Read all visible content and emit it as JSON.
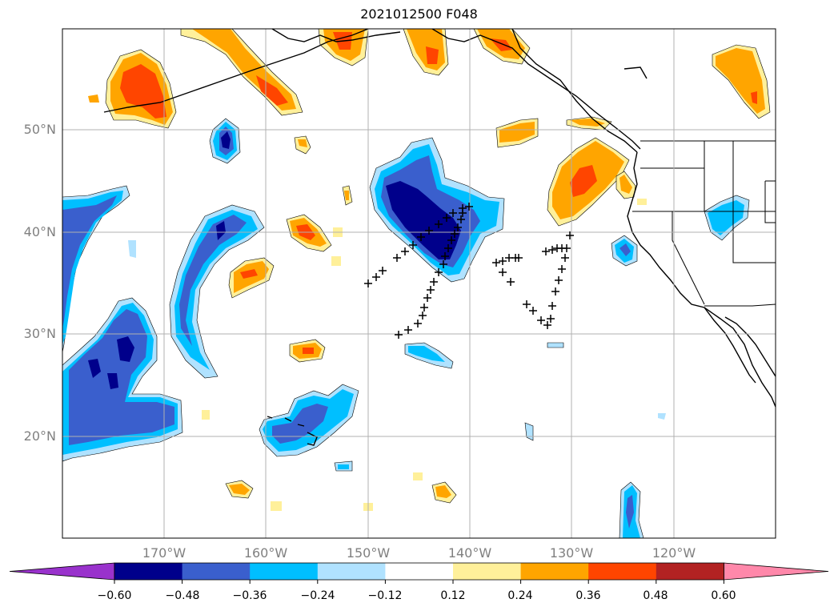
{
  "title": "2021012500 F048",
  "map": {
    "lat_labels": [
      "50°N",
      "40°N",
      "30°N",
      "20°N"
    ],
    "lon_labels": [
      "170°W",
      "160°W",
      "150°W",
      "140°W",
      "130°W",
      "120°W"
    ],
    "land_color": "#ffffff",
    "grid_color": "#b0b0b0"
  },
  "colorbar": {
    "colors": [
      "#9932cc",
      "#00008b",
      "#3a5fcd",
      "#00bfff",
      "#b0e2ff",
      "#ffffff",
      "#fff09a",
      "#ffa500",
      "#ff4500",
      "#b22222",
      "#ff88aa"
    ],
    "tick_labels": [
      "−0.60",
      "−0.48",
      "−0.36",
      "−0.24",
      "−0.12",
      "0.12",
      "0.24",
      "0.36",
      "0.48",
      "0.60"
    ]
  },
  "colors": {
    "neg1": "#b0e2ff",
    "neg2": "#00bfff",
    "neg3": "#3a5fcd",
    "neg4": "#00008b",
    "pos1": "#fff09a",
    "pos2": "#ffa500",
    "pos3": "#ff4500"
  }
}
